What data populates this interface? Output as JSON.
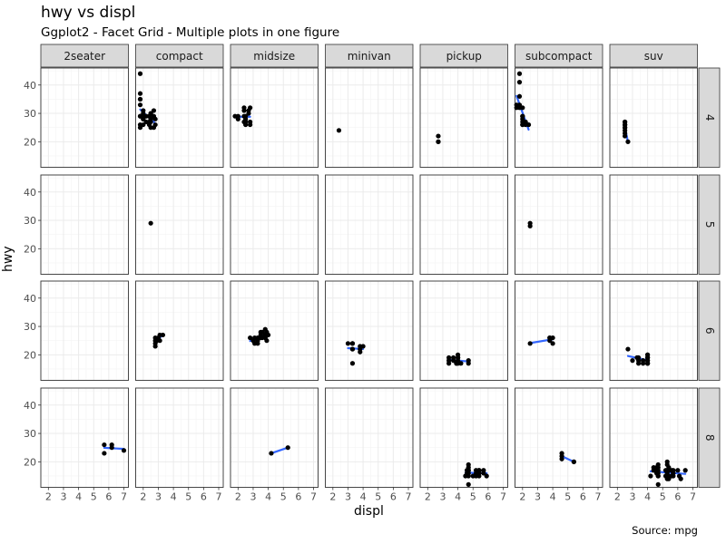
{
  "title": "hwy vs displ",
  "subtitle": "Ggplot2 - Facet Grid - Multiple plots in one figure",
  "xlabel": "displ",
  "ylabel": "hwy",
  "caption": "Source: mpg",
  "chart_data": {
    "type": "scatter",
    "facet_type": "grid",
    "col_facets": [
      "2seater",
      "compact",
      "midsize",
      "minivan",
      "pickup",
      "subcompact",
      "suv"
    ],
    "row_facets": [
      "4",
      "5",
      "6",
      "8"
    ],
    "xlim": [
      1.5,
      7.3
    ],
    "ylim": [
      11,
      46
    ],
    "x_ticks": [
      2,
      3,
      4,
      5,
      6,
      7
    ],
    "y_ticks": [
      20,
      30,
      40
    ],
    "grid": true,
    "smooth": "lm",
    "colors": {
      "points": "#000000",
      "smooth": "#3366FF",
      "strip": "#D9D9D9",
      "grid": "#EBEBEB"
    },
    "panels": [
      {
        "row": "4",
        "col": "compact",
        "smooth": true,
        "points": [
          [
            1.8,
            29
          ],
          [
            1.8,
            29
          ],
          [
            2.0,
            31
          ],
          [
            2.0,
            30
          ],
          [
            2.8,
            26
          ],
          [
            2.4,
            26
          ],
          [
            1.8,
            26
          ],
          [
            1.8,
            25
          ],
          [
            2.0,
            28
          ],
          [
            2.0,
            28
          ],
          [
            2.4,
            27
          ],
          [
            1.8,
            33
          ],
          [
            1.8,
            35
          ],
          [
            1.8,
            37
          ],
          [
            1.8,
            35
          ],
          [
            1.8,
            44
          ],
          [
            2.0,
            29
          ],
          [
            2.0,
            26
          ],
          [
            2.2,
            29
          ],
          [
            2.4,
            29
          ],
          [
            2.5,
            30
          ],
          [
            2.5,
            30
          ],
          [
            2.5,
            28
          ],
          [
            2.5,
            27
          ],
          [
            2.2,
            27
          ],
          [
            2.5,
            25
          ],
          [
            2.5,
            28
          ],
          [
            2.7,
            25
          ],
          [
            2.7,
            31
          ],
          [
            2.7,
            29
          ],
          [
            2.8,
            28
          ]
        ]
      },
      {
        "row": "4",
        "col": "midsize",
        "smooth": true,
        "points": [
          [
            2.4,
            27
          ],
          [
            2.4,
            29
          ],
          [
            2.5,
            28
          ],
          [
            2.5,
            29
          ],
          [
            2.5,
            27
          ],
          [
            2.5,
            26
          ],
          [
            2.4,
            31
          ],
          [
            2.4,
            32
          ],
          [
            2.7,
            30
          ],
          [
            2.7,
            31
          ],
          [
            2.8,
            26
          ],
          [
            2.8,
            27
          ],
          [
            1.8,
            29
          ],
          [
            2.0,
            28
          ],
          [
            2.0,
            29
          ],
          [
            2.8,
            32
          ]
        ]
      },
      {
        "row": "4",
        "col": "minivan",
        "smooth": false,
        "points": [
          [
            2.4,
            24
          ]
        ]
      },
      {
        "row": "4",
        "col": "pickup",
        "smooth": false,
        "points": [
          [
            2.7,
            20
          ],
          [
            2.7,
            22
          ],
          [
            2.7,
            20
          ]
        ]
      },
      {
        "row": "4",
        "col": "subcompact",
        "smooth": true,
        "points": [
          [
            1.8,
            32
          ],
          [
            1.8,
            33
          ],
          [
            1.8,
            36
          ],
          [
            2.0,
            32
          ],
          [
            2.0,
            29
          ],
          [
            1.8,
            41
          ],
          [
            1.8,
            44
          ],
          [
            2.0,
            28
          ],
          [
            2.0,
            27
          ],
          [
            2.0,
            26
          ],
          [
            2.2,
            26
          ],
          [
            2.2,
            27
          ],
          [
            2.4,
            26
          ],
          [
            2.4,
            26
          ],
          [
            1.6,
            33
          ],
          [
            1.6,
            32
          ],
          [
            2.0,
            29
          ],
          [
            2.0,
            26
          ]
        ]
      },
      {
        "row": "4",
        "col": "suv",
        "smooth": true,
        "points": [
          [
            2.5,
            24
          ],
          [
            2.5,
            25
          ],
          [
            2.5,
            26
          ],
          [
            2.5,
            27
          ],
          [
            2.5,
            26
          ],
          [
            2.5,
            23
          ],
          [
            2.5,
            22
          ],
          [
            2.7,
            20
          ],
          [
            2.5,
            27
          ],
          [
            2.5,
            25
          ]
        ]
      },
      {
        "row": "5",
        "col": "compact",
        "smooth": false,
        "points": [
          [
            2.5,
            29
          ]
        ]
      },
      {
        "row": "5",
        "col": "subcompact",
        "smooth": false,
        "points": [
          [
            2.5,
            28
          ],
          [
            2.5,
            29
          ]
        ]
      },
      {
        "row": "6",
        "col": "compact",
        "smooth": true,
        "points": [
          [
            2.8,
            24
          ],
          [
            2.8,
            25
          ],
          [
            3.1,
            25
          ],
          [
            3.1,
            27
          ],
          [
            2.8,
            23
          ],
          [
            3.3,
            27
          ],
          [
            3.0,
            26
          ],
          [
            2.8,
            26
          ],
          [
            2.9,
            25
          ]
        ]
      },
      {
        "row": "6",
        "col": "midsize",
        "smooth": true,
        "points": [
          [
            2.8,
            26
          ],
          [
            3.1,
            26
          ],
          [
            3.1,
            24
          ],
          [
            3.3,
            26
          ],
          [
            3.5,
            26
          ],
          [
            3.5,
            27
          ],
          [
            3.3,
            25
          ],
          [
            3.8,
            26
          ],
          [
            3.8,
            27
          ],
          [
            3.8,
            29
          ],
          [
            3.5,
            28
          ],
          [
            3.6,
            28
          ],
          [
            3.9,
            25
          ],
          [
            3.9,
            28
          ],
          [
            4.0,
            27
          ],
          [
            3.0,
            25
          ],
          [
            3.6,
            26
          ],
          [
            3.8,
            26
          ],
          [
            3.8,
            27
          ],
          [
            3.3,
            24
          ]
        ]
      },
      {
        "row": "6",
        "col": "minivan",
        "smooth": true,
        "points": [
          [
            3.0,
            24
          ],
          [
            3.3,
            24
          ],
          [
            3.3,
            22
          ],
          [
            3.3,
            17
          ],
          [
            3.3,
            24
          ],
          [
            3.8,
            22
          ],
          [
            3.8,
            21
          ],
          [
            3.8,
            23
          ],
          [
            4.0,
            23
          ],
          [
            3.3,
            22
          ]
        ]
      },
      {
        "row": "6",
        "col": "pickup",
        "smooth": true,
        "points": [
          [
            3.7,
            19
          ],
          [
            3.7,
            18
          ],
          [
            3.9,
            17
          ],
          [
            3.9,
            17
          ],
          [
            4.0,
            19
          ],
          [
            4.0,
            19
          ],
          [
            4.0,
            17
          ],
          [
            3.4,
            17
          ],
          [
            3.4,
            19
          ],
          [
            4.0,
            20
          ],
          [
            4.0,
            18
          ],
          [
            4.2,
            17
          ],
          [
            4.7,
            17
          ],
          [
            4.7,
            18
          ],
          [
            3.4,
            18
          ]
        ]
      },
      {
        "row": "6",
        "col": "subcompact",
        "smooth": true,
        "points": [
          [
            2.5,
            24
          ],
          [
            3.8,
            26
          ],
          [
            3.8,
            25
          ],
          [
            4.0,
            26
          ],
          [
            4.0,
            24
          ],
          [
            3.8,
            26
          ]
        ]
      },
      {
        "row": "6",
        "col": "suv",
        "smooth": true,
        "points": [
          [
            3.0,
            18
          ],
          [
            3.7,
            18
          ],
          [
            3.3,
            19
          ],
          [
            4.0,
            17
          ],
          [
            4.0,
            17
          ],
          [
            4.0,
            19
          ],
          [
            4.0,
            19
          ],
          [
            4.0,
            20
          ],
          [
            4.0,
            18
          ],
          [
            3.7,
            17
          ],
          [
            2.7,
            22
          ],
          [
            3.4,
            17
          ],
          [
            3.4,
            18
          ],
          [
            4.0,
            18
          ],
          [
            4.0,
            20
          ],
          [
            4.0,
            17
          ],
          [
            3.4,
            19
          ],
          [
            4.0,
            19
          ]
        ]
      },
      {
        "row": "8",
        "col": "2seater",
        "smooth": true,
        "points": [
          [
            5.7,
            26
          ],
          [
            5.7,
            23
          ],
          [
            6.2,
            26
          ],
          [
            6.2,
            25
          ],
          [
            7.0,
            24
          ]
        ]
      },
      {
        "row": "8",
        "col": "midsize",
        "smooth": true,
        "points": [
          [
            4.2,
            23
          ],
          [
            5.3,
            25
          ]
        ]
      },
      {
        "row": "8",
        "col": "pickup",
        "smooth": true,
        "points": [
          [
            4.7,
            12
          ],
          [
            4.7,
            15
          ],
          [
            4.7,
            16
          ],
          [
            4.7,
            17
          ],
          [
            4.7,
            19
          ],
          [
            5.2,
            15
          ],
          [
            5.2,
            17
          ],
          [
            5.7,
            17
          ],
          [
            5.9,
            15
          ],
          [
            4.5,
            15
          ],
          [
            5.4,
            17
          ],
          [
            5.4,
            16
          ],
          [
            5.4,
            15
          ],
          [
            4.6,
            16
          ],
          [
            4.6,
            17
          ],
          [
            5.0,
            15
          ],
          [
            4.7,
            17
          ],
          [
            5.2,
            16
          ],
          [
            5.7,
            16
          ],
          [
            4.7,
            18
          ],
          [
            5.4,
            17
          ]
        ]
      },
      {
        "row": "8",
        "col": "subcompact",
        "smooth": true,
        "points": [
          [
            4.6,
            23
          ],
          [
            4.6,
            22
          ],
          [
            5.4,
            20
          ],
          [
            4.6,
            21
          ],
          [
            5.4,
            20
          ]
        ]
      },
      {
        "row": "8",
        "col": "suv",
        "smooth": true,
        "points": [
          [
            4.2,
            15
          ],
          [
            4.4,
            17
          ],
          [
            4.6,
            17
          ],
          [
            4.6,
            18
          ],
          [
            4.7,
            12
          ],
          [
            4.7,
            17
          ],
          [
            4.7,
            19
          ],
          [
            5.3,
            20
          ],
          [
            5.3,
            19
          ],
          [
            5.7,
            17
          ],
          [
            6.5,
            17
          ],
          [
            5.3,
            15
          ],
          [
            5.3,
            16
          ],
          [
            5.3,
            14
          ],
          [
            5.7,
            15
          ],
          [
            6.0,
            17
          ],
          [
            4.6,
            17
          ],
          [
            5.4,
            17
          ],
          [
            5.4,
            15
          ],
          [
            4.7,
            15
          ],
          [
            5.7,
            16
          ],
          [
            6.1,
            15
          ],
          [
            5.3,
            17
          ],
          [
            5.4,
            18
          ],
          [
            4.7,
            15
          ],
          [
            5.7,
            16
          ],
          [
            4.6,
            17
          ],
          [
            6.2,
            14
          ],
          [
            4.7,
            16
          ],
          [
            5.6,
            17
          ],
          [
            4.7,
            18
          ],
          [
            5.3,
            15
          ],
          [
            4.6,
            16
          ],
          [
            5.2,
            17
          ],
          [
            5.2,
            15
          ],
          [
            4.4,
            18
          ],
          [
            5.4,
            14
          ],
          [
            5.6,
            15
          ]
        ]
      }
    ]
  }
}
